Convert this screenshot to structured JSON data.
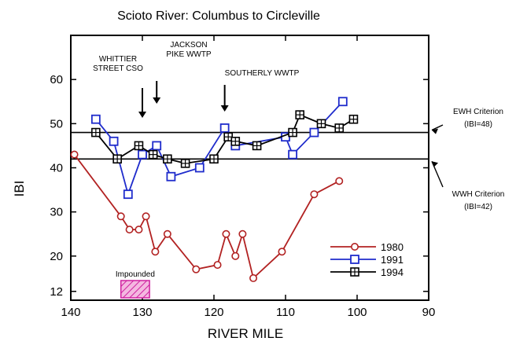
{
  "chart_data": {
    "type": "line",
    "title": "Scioto River: Columbus to Circleville",
    "xlabel": "RIVER MILE",
    "ylabel": "IBI",
    "xlim": [
      140,
      90
    ],
    "ylim": [
      10,
      70
    ],
    "x_ticks": [
      140,
      130,
      120,
      110,
      100,
      90
    ],
    "y_ticks": [
      12,
      20,
      30,
      40,
      50,
      60
    ],
    "grid": false,
    "legend_position": "bottom-right",
    "criteria": [
      {
        "y": 48,
        "label_lines": [
          "EWH Criterion",
          "(IBI=48)"
        ],
        "color": "#000000"
      },
      {
        "y": 42,
        "label_lines": [
          "WWH Criterion",
          "(IBI=42)"
        ],
        "color": "#000000"
      }
    ],
    "annotations": [
      {
        "x": 130,
        "label_lines": [
          "WHITTIER",
          "STREET CSO"
        ]
      },
      {
        "x": 128,
        "label_lines": [
          "JACKSON",
          "PIKE WWTP"
        ]
      },
      {
        "x": 118.5,
        "label_lines": [
          "SOUTHERLY WWTP"
        ]
      }
    ],
    "impounded": {
      "label": "Impounded",
      "x_from": 133,
      "x_to": 129
    },
    "series": [
      {
        "name": "1980",
        "color": "#b22222",
        "marker": "circle",
        "x": [
          139.5,
          133,
          131.8,
          130.5,
          129.5,
          128.2,
          126.5,
          122.5,
          119.5,
          118.3,
          117,
          116,
          114.5,
          110.5,
          106,
          102.5
        ],
        "values": [
          43,
          29,
          26,
          26,
          29,
          21,
          25,
          17,
          18,
          25,
          20,
          25,
          15,
          21,
          34,
          37
        ]
      },
      {
        "name": "1991",
        "color": "#1f2ccc",
        "marker": "square",
        "x": [
          136.5,
          134,
          132,
          130,
          128,
          126,
          122,
          118.5,
          117,
          110,
          109,
          106,
          102
        ],
        "values": [
          51,
          46,
          34,
          43,
          45,
          38,
          40,
          49,
          45,
          47,
          43,
          48,
          55
        ]
      },
      {
        "name": "1994",
        "color": "#000000",
        "marker": "boxcross",
        "x": [
          136.5,
          133.5,
          130.5,
          128.5,
          126.5,
          124,
          120,
          118,
          117,
          114,
          109,
          108,
          105,
          102.5,
          100.5
        ],
        "values": [
          48,
          42,
          45,
          43,
          42,
          41,
          42,
          47,
          46,
          45,
          48,
          52,
          50,
          49,
          51
        ]
      }
    ]
  }
}
